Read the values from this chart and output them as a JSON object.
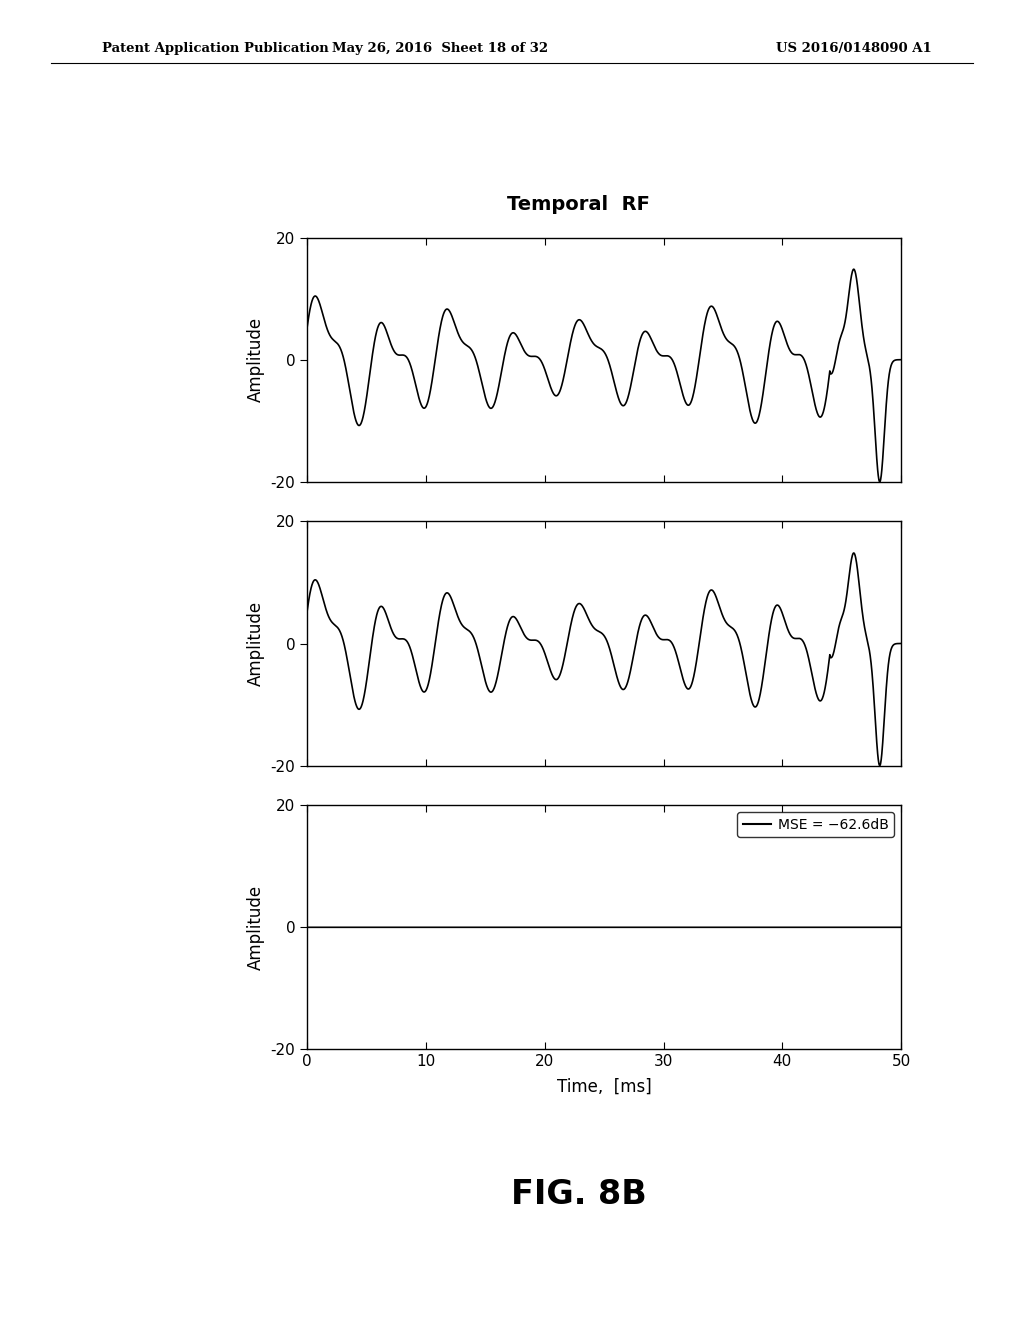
{
  "title": "Temporal  RF",
  "fig_label": "FIG. 8B",
  "header_left": "Patent Application Publication",
  "header_center": "May 26, 2016  Sheet 18 of 32",
  "header_right": "US 2016/0148090 A1",
  "ylim": [
    -20,
    20
  ],
  "yticks": [
    -20,
    0,
    20
  ],
  "xlim": [
    0,
    50
  ],
  "xticks": [
    0,
    10,
    20,
    30,
    40,
    50
  ],
  "xlabel": "Time,  [ms]",
  "ylabel": "Amplitude",
  "legend_text": "MSE = −62.6dB",
  "background_color": "#ffffff",
  "line_color": "#000000"
}
